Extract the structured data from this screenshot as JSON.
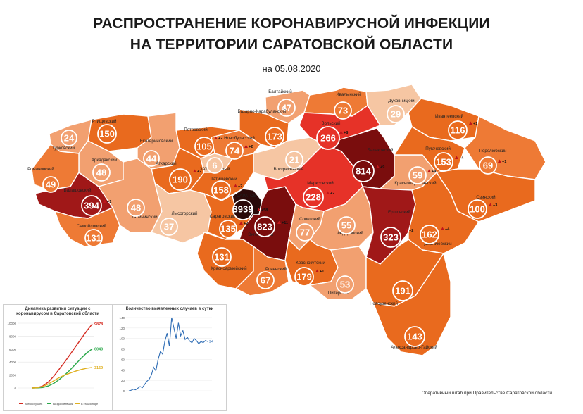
{
  "header": {
    "title_line1": "РАСПРОСТРАНЕНИЕ КОРОНАВИРУСНОЙ ИНФЕКЦИИ",
    "title_line2": "НА ТЕРРИТОРИИ САРАТОВСКОЙ ОБЛАСТИ",
    "date": "на 05.08.2020"
  },
  "colors": {
    "very_light": "#f6c6a3",
    "light": "#f2a070",
    "medium": "#ee7a35",
    "orange": "#e96a1e",
    "red": "#e63228",
    "dark_red": "#a01818",
    "maroon": "#7a0d0d",
    "black": "#2a0a0a",
    "circle_border": "#ffffff"
  },
  "districts": [
    {
      "name": "Балтайский",
      "count": "47",
      "increase": "",
      "shade": "light"
    },
    {
      "name": "Хвалынский",
      "count": "73",
      "increase": "",
      "shade": "medium"
    },
    {
      "name": "Духовницкий",
      "count": "29",
      "increase": "",
      "shade": "very_light"
    },
    {
      "name": "Вольский",
      "count": "266",
      "increase": "+8",
      "shade": "red"
    },
    {
      "name": "Базарно-Карабулакский",
      "count": "173",
      "increase": "",
      "shade": "orange"
    },
    {
      "name": "Новобурасский",
      "count": "74",
      "increase": "+2",
      "shade": "medium"
    },
    {
      "name": "Петровский",
      "count": "105",
      "increase": "+2",
      "shade": "orange"
    },
    {
      "name": "Ртищевский",
      "count": "150",
      "increase": "",
      "shade": "orange"
    },
    {
      "name": "Турковский",
      "count": "24",
      "increase": "",
      "shade": "light"
    },
    {
      "name": "Екатериновский",
      "count": "44",
      "increase": "",
      "shade": "light"
    },
    {
      "name": "Аркадакский",
      "count": "48",
      "increase": "",
      "shade": "light"
    },
    {
      "name": "Романовский",
      "count": "49",
      "increase": "",
      "shade": "medium"
    },
    {
      "name": "Аткарский",
      "count": "190",
      "increase": "+2",
      "shade": "orange"
    },
    {
      "name": "ЗАТО Светлый",
      "count": "6",
      "increase": "",
      "shade": "very_light"
    },
    {
      "name": "Татищевский",
      "count": "158",
      "increase": "+2",
      "shade": "orange"
    },
    {
      "name": "Воскресенский",
      "count": "21",
      "increase": "",
      "shade": "very_light"
    },
    {
      "name": "Балашовский",
      "count": "394",
      "increase": "+1",
      "shade": "dark_red"
    },
    {
      "name": "Самойловский",
      "count": "131",
      "increase": "",
      "shade": "medium"
    },
    {
      "name": "Калининский",
      "count": "48",
      "increase": "",
      "shade": "light"
    },
    {
      "name": "Лысогорский",
      "count": "37",
      "increase": "",
      "shade": "very_light"
    },
    {
      "name": "Саратовский",
      "count": "135",
      "increase": "+2",
      "shade": "orange"
    },
    {
      "name": "САРАТОВ",
      "count": "3939",
      "increase": "+58",
      "shade": "black"
    },
    {
      "name": "Энгельсский",
      "count": "823",
      "increase": "+11",
      "shade": "maroon"
    },
    {
      "name": "Марксовский",
      "count": "228",
      "increase": "+2",
      "shade": "red"
    },
    {
      "name": "Балаковский",
      "count": "814",
      "increase": "+9",
      "shade": "maroon"
    },
    {
      "name": "Советский",
      "count": "77",
      "increase": "",
      "shade": "light"
    },
    {
      "name": "Федоровский",
      "count": "55",
      "increase": "",
      "shade": "light"
    },
    {
      "name": "Ершовский",
      "count": "323",
      "increase": "+2",
      "shade": "dark_red"
    },
    {
      "name": "Краснопартизанский",
      "count": "59",
      "increase": "+4",
      "shade": "light"
    },
    {
      "name": "Ивантеевский",
      "count": "116",
      "increase": "+1",
      "shade": "orange"
    },
    {
      "name": "Пугачевский",
      "count": "153",
      "increase": "+4",
      "shade": "orange"
    },
    {
      "name": "Перелюбский",
      "count": "69",
      "increase": "+1",
      "shade": "medium"
    },
    {
      "name": "Озинский",
      "count": "100",
      "increase": "+3",
      "shade": "orange"
    },
    {
      "name": "Дергачевский",
      "count": "162",
      "increase": "+4",
      "shade": "orange"
    },
    {
      "name": "Красноармейский",
      "count": "131",
      "increase": "",
      "shade": "orange"
    },
    {
      "name": "Ровенский",
      "count": "67",
      "increase": "",
      "shade": "medium"
    },
    {
      "name": "Краснокутский",
      "count": "179",
      "increase": "+1",
      "shade": "orange"
    },
    {
      "name": "Питерский",
      "count": "53",
      "increase": "",
      "shade": "light"
    },
    {
      "name": "Новоузенский",
      "count": "191",
      "increase": "",
      "shade": "orange"
    },
    {
      "name": "Александрово-Гайский",
      "count": "143",
      "increase": "",
      "shade": "orange"
    }
  ],
  "charts": {
    "cumulative": {
      "title_line1": "Динамика развития ситуации с",
      "title_line2": "коронавирусом в Саратовской области",
      "y_ticks": [
        "0",
        "2000",
        "4000",
        "6000",
        "8000",
        "10000"
      ],
      "series": [
        {
          "name": "Всего случаев",
          "color": "#d42a20",
          "final_label": "9878",
          "values": [
            0,
            50,
            300,
            900,
            1800,
            2900,
            4000,
            5200,
            6400,
            7600,
            8800,
            9878
          ]
        },
        {
          "name": "Выздоровевший",
          "color": "#2aa84a",
          "final_label": "6040",
          "values": [
            0,
            10,
            80,
            300,
            700,
            1300,
            2000,
            2800,
            3700,
            4600,
            5400,
            6040
          ]
        },
        {
          "name": "В стационаре",
          "color": "#e0b020",
          "final_label": "3159",
          "values": [
            0,
            40,
            220,
            600,
            1100,
            1600,
            2000,
            2300,
            2600,
            2850,
            3050,
            3159
          ]
        }
      ]
    },
    "daily": {
      "title": "Количество выявленных случаев в сутки",
      "y_ticks": [
        "0",
        "20",
        "40",
        "60",
        "80",
        "100",
        "120",
        "140"
      ],
      "series_color": "#2f6db5",
      "final_label": "94",
      "values": [
        0,
        1,
        3,
        2,
        5,
        8,
        6,
        12,
        18,
        22,
        30,
        45,
        38,
        60,
        75,
        70,
        95,
        110,
        85,
        140,
        120,
        100,
        130,
        105,
        115,
        98,
        102,
        95,
        92,
        100,
        96,
        90,
        94,
        92,
        96,
        94
      ]
    }
  },
  "footer": {
    "source": "Оперативный штаб при Правительстве Саратовской области"
  }
}
